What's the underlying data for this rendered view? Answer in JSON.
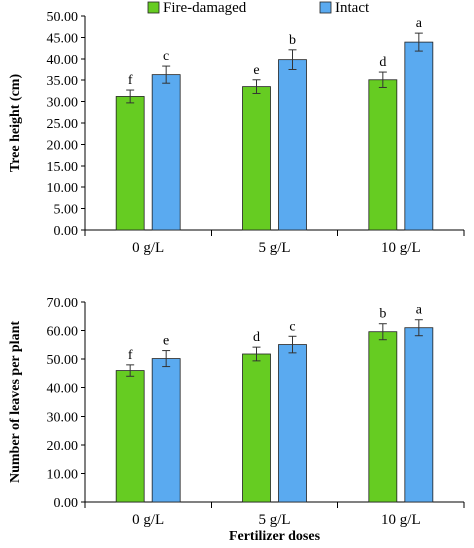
{
  "chart_data": [
    {
      "type": "bar",
      "categories": [
        "0 g/L",
        "5 g/L",
        "10 g/L"
      ],
      "series": [
        {
          "name": "Fire-damaged",
          "values": [
            31.2,
            33.5,
            35.1
          ],
          "errors": [
            1.5,
            1.6,
            1.8
          ],
          "labels": [
            "f",
            "e",
            "d"
          ]
        },
        {
          "name": "Intact",
          "values": [
            36.3,
            39.8,
            43.9
          ],
          "errors": [
            2.0,
            2.3,
            2.1
          ],
          "labels": [
            "c",
            "b",
            "a"
          ]
        }
      ],
      "ylabel": "Tree height (cm)",
      "xlabel": "",
      "ylim": [
        0,
        50
      ],
      "yticks": [
        "0.00",
        "5.00",
        "10.00",
        "15.00",
        "20.00",
        "25.00",
        "30.00",
        "35.00",
        "40.00",
        "45.00",
        "50.00"
      ],
      "legend": "top"
    },
    {
      "type": "bar",
      "categories": [
        "0 g/L",
        "5 g/L",
        "10 g/L"
      ],
      "series": [
        {
          "name": "Fire-damaged",
          "values": [
            46.0,
            51.8,
            59.6
          ],
          "errors": [
            2.0,
            2.4,
            2.8
          ],
          "labels": [
            "f",
            "d",
            "b"
          ]
        },
        {
          "name": "Intact",
          "values": [
            50.2,
            55.1,
            61.0
          ],
          "errors": [
            2.8,
            2.9,
            2.8
          ],
          "labels": [
            "e",
            "c",
            "a"
          ]
        }
      ],
      "ylabel": "Number of leaves per plant",
      "xlabel": "Fertilizer doses",
      "ylim": [
        0,
        70
      ],
      "yticks": [
        "0.00",
        "10.00",
        "20.00",
        "30.00",
        "40.00",
        "50.00",
        "60.00",
        "70.00"
      ]
    }
  ],
  "colors": {
    "fire_damaged": "#66cc22",
    "intact": "#5aaaf0"
  }
}
